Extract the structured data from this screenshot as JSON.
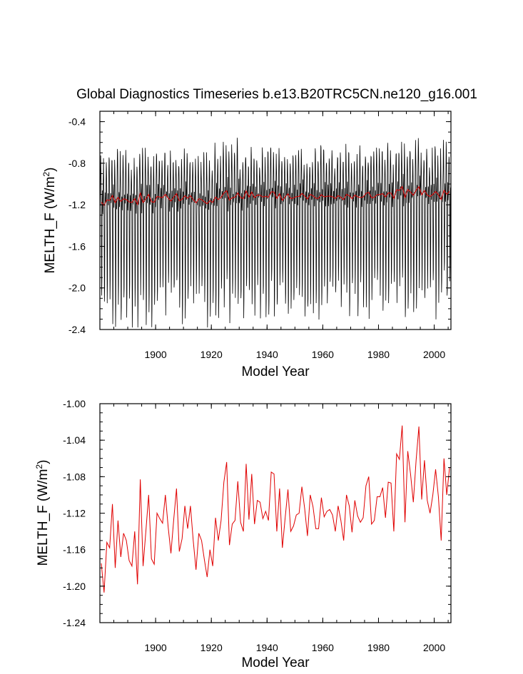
{
  "title": "Global Diagnostics Timeseries b.e13.B20TRC5CN.ne120_g16.001",
  "chart_data": [
    {
      "type": "line",
      "xlabel": "Model Year",
      "ylabel": "MELTH_F (W/m",
      "ylabel_sup": "2",
      "ylabel_close": ")",
      "xlim": [
        1880,
        2006
      ],
      "ylim": [
        -2.4,
        -0.3
      ],
      "xticks": [
        "1900",
        "1920",
        "1940",
        "1960",
        "1980",
        "2000"
      ],
      "yticks": [
        "-0.4",
        "-0.8",
        "-1.2",
        "-1.6",
        "-2.0",
        "-2.4"
      ],
      "grid": false,
      "series": [
        {
          "color": "#000000",
          "values": []
        },
        {
          "color": "#e00000",
          "values": []
        }
      ]
    },
    {
      "type": "line",
      "xlabel": "Model Year",
      "ylabel": "MELTH_F (W/m",
      "ylabel_sup": "2",
      "ylabel_close": ")",
      "xlim": [
        1880,
        2006
      ],
      "ylim": [
        -1.24,
        -1.0
      ],
      "xticks": [
        "1900",
        "1920",
        "1940",
        "1960",
        "1980",
        "2000"
      ],
      "yticks": [
        "-1.00",
        "-1.04",
        "-1.08",
        "-1.12",
        "-1.16",
        "-1.20",
        "-1.24"
      ],
      "grid": false,
      "series": [
        {
          "color": "#e00000",
          "x_start": 1880.5,
          "x_step": 1,
          "values": [
            -1.175,
            -1.207,
            -1.152,
            -1.158,
            -1.11,
            -1.18,
            -1.128,
            -1.168,
            -1.142,
            -1.15,
            -1.172,
            -1.178,
            -1.14,
            -1.198,
            -1.083,
            -1.178,
            -1.14,
            -1.1,
            -1.17,
            -1.176,
            -1.12,
            -1.126,
            -1.131,
            -1.1,
            -1.135,
            -1.164,
            -1.127,
            -1.093,
            -1.162,
            -1.148,
            -1.112,
            -1.137,
            -1.112,
            -1.15,
            -1.182,
            -1.142,
            -1.15,
            -1.171,
            -1.19,
            -1.16,
            -1.178,
            -1.125,
            -1.15,
            -1.128,
            -1.086,
            -1.064,
            -1.155,
            -1.132,
            -1.128,
            -1.085,
            -1.13,
            -1.14,
            -1.066,
            -1.127,
            -1.077,
            -1.132,
            -1.106,
            -1.108,
            -1.126,
            -1.118,
            -1.128,
            -1.075,
            -1.077,
            -1.14,
            -1.093,
            -1.158,
            -1.125,
            -1.094,
            -1.14,
            -1.134,
            -1.122,
            -1.12,
            -1.091,
            -1.115,
            -1.145,
            -1.1,
            -1.113,
            -1.137,
            -1.137,
            -1.103,
            -1.124,
            -1.118,
            -1.116,
            -1.122,
            -1.14,
            -1.112,
            -1.128,
            -1.15,
            -1.1,
            -1.112,
            -1.141,
            -1.106,
            -1.123,
            -1.13,
            -1.125,
            -1.09,
            -1.08,
            -1.132,
            -1.128,
            -1.102,
            -1.102,
            -1.092,
            -1.125,
            -1.086,
            -1.087,
            -1.14,
            -1.055,
            -1.061,
            -1.024,
            -1.13,
            -1.052,
            -1.077,
            -1.108,
            -1.062,
            -1.025,
            -1.105,
            -1.062,
            -1.106,
            -1.12,
            -1.1,
            -1.072,
            -1.102,
            -1.15,
            -1.06,
            -1.1,
            -1.07
          ]
        }
      ]
    }
  ]
}
